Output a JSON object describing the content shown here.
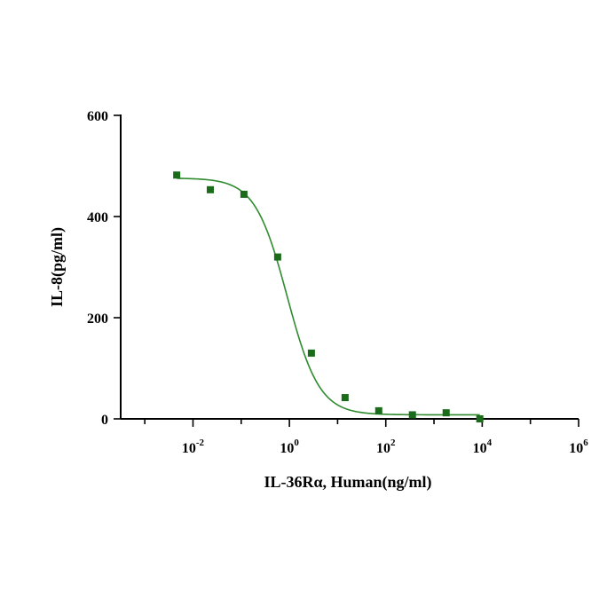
{
  "colors": {
    "series": "#1a6b1a",
    "curve": "#2e8b2e",
    "axis": "#000000"
  },
  "chart_data": {
    "type": "scatter",
    "title": "",
    "xlabel": "IL-36Rα, Human(ng/ml)",
    "ylabel": "IL-8(pg/ml)",
    "xscale": "log",
    "xlim_log10": [
      -3.5,
      6
    ],
    "ylim": [
      0,
      600
    ],
    "y_ticks": [
      0,
      200,
      400,
      600
    ],
    "x_ticks": [
      {
        "base": "10",
        "exp": "-2",
        "log10": -2
      },
      {
        "base": "10",
        "exp": "0",
        "log10": 0
      },
      {
        "base": "10",
        "exp": "2",
        "log10": 2
      },
      {
        "base": "10",
        "exp": "4",
        "log10": 4
      },
      {
        "base": "10",
        "exp": "6",
        "log10": 6
      }
    ],
    "series": [
      {
        "name": "IL-36Rα, Human",
        "marker": "square",
        "x": [
          0.0046,
          0.0229,
          0.114,
          0.571,
          2.86,
          14.3,
          71.4,
          357,
          1786,
          8930
        ],
        "y": [
          482,
          453,
          444,
          320,
          130,
          42,
          16,
          8,
          12,
          0
        ]
      }
    ],
    "fit": {
      "type": "4PL",
      "top": 476,
      "bottom": 8,
      "ec50": 0.9,
      "hill": 1.3
    }
  }
}
